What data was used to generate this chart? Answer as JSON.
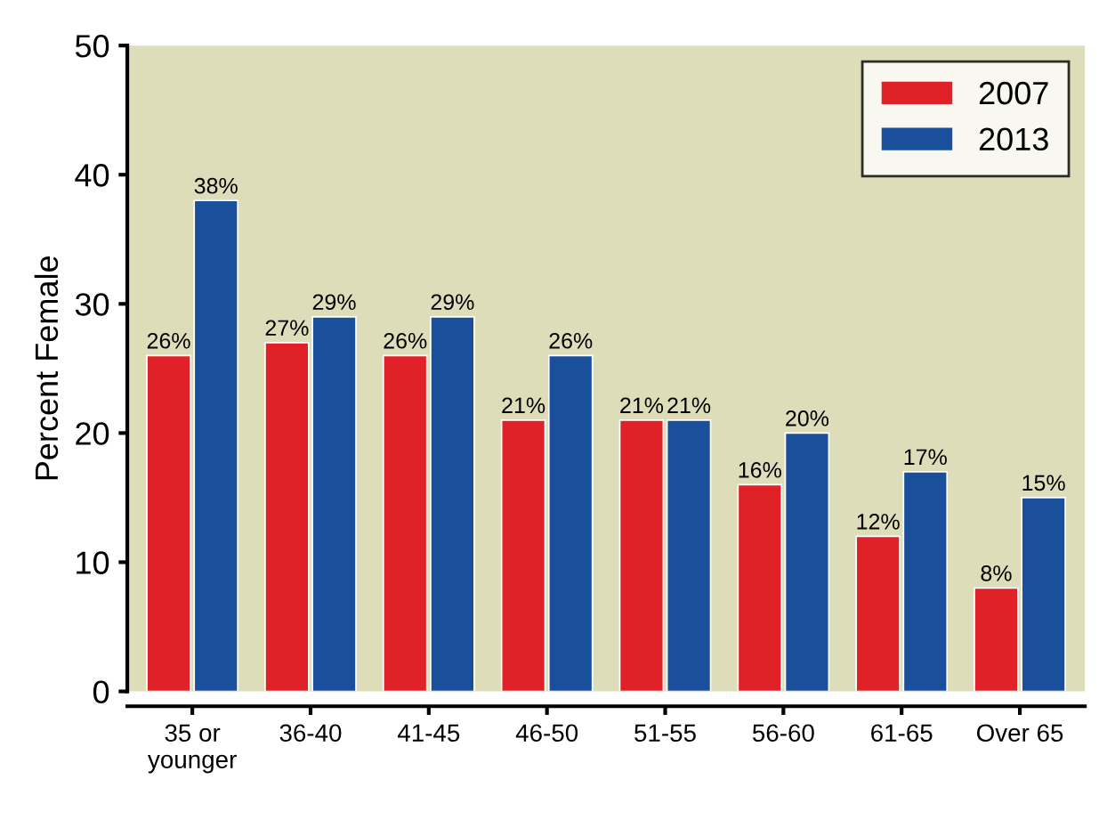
{
  "chart_data": {
    "type": "bar",
    "ylabel": "Percent Female",
    "categories": [
      "35 or\nyounger",
      "36-40",
      "41-45",
      "46-50",
      "51-55",
      "56-60",
      "61-65",
      "Over 65"
    ],
    "series": [
      {
        "name": "2007",
        "color": "#e02228",
        "values": [
          26,
          27,
          26,
          21,
          21,
          16,
          12,
          8
        ],
        "value_labels": [
          "26%",
          "27%",
          "26%",
          "21%",
          "21%",
          "16%",
          "12%",
          "8%"
        ]
      },
      {
        "name": "2013",
        "color": "#1a4f9c",
        "values": [
          38,
          29,
          29,
          26,
          21,
          20,
          17,
          15
        ],
        "value_labels": [
          "38%",
          "29%",
          "29%",
          "26%",
          "21%",
          "20%",
          "17%",
          "15%"
        ]
      }
    ],
    "ylim": [
      0,
      50
    ],
    "yticks": [
      0,
      10,
      20,
      30,
      40,
      50
    ],
    "grid": false,
    "legend": "top right"
  }
}
